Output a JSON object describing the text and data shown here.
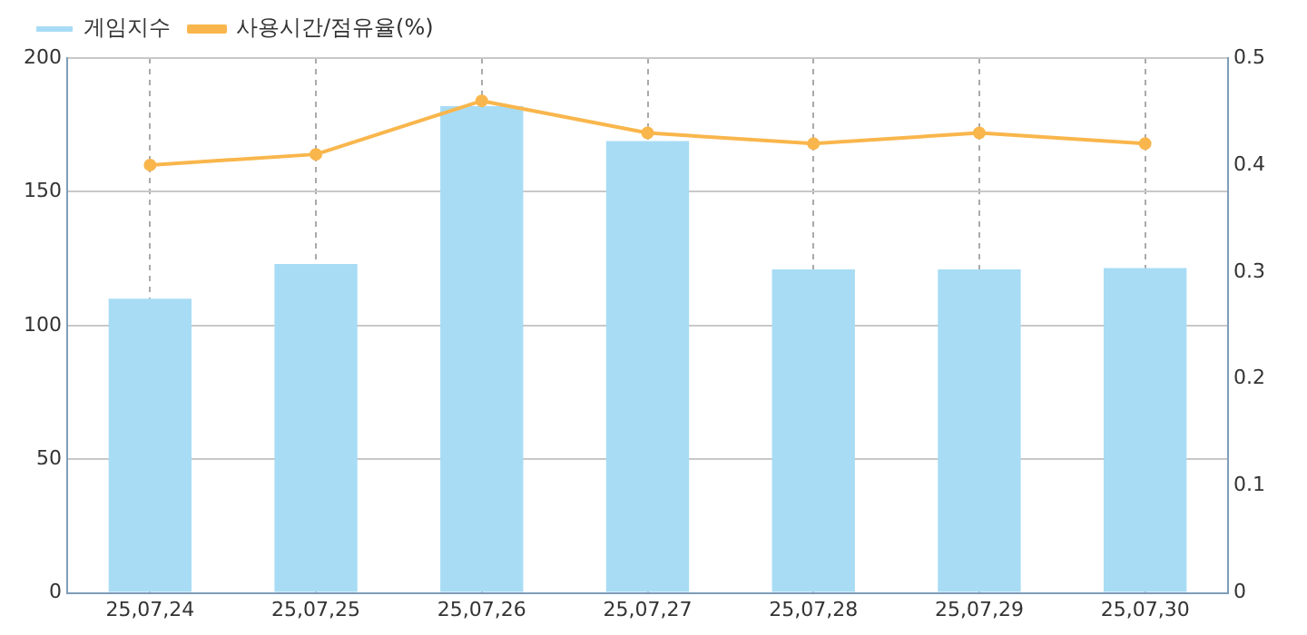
{
  "chart_data": {
    "type": "bar",
    "categories": [
      "25,07,24",
      "25,07,25",
      "25,07,26",
      "25,07,27",
      "25,07,28",
      "25,07,29",
      "25,07,30"
    ],
    "series": [
      {
        "name": "게임지수",
        "color": "#a8dcf5",
        "values": [
          110,
          123,
          182,
          169,
          121,
          121,
          121.5
        ]
      },
      {
        "name": "사용시간/점유율(%)",
        "type": "line",
        "axis": "y2",
        "color": "#f9b64c",
        "values": [
          0.4,
          0.41,
          0.46,
          0.43,
          0.42,
          0.43,
          0.42
        ]
      }
    ],
    "ylim": [
      0,
      200
    ],
    "yticks": [
      0,
      50,
      100,
      150,
      200
    ],
    "y2lim": [
      0,
      0.5
    ],
    "y2ticks": [
      0,
      0.1,
      0.2,
      0.3,
      0.4,
      0.5
    ],
    "grid": true,
    "legend": "top left",
    "marker": "circle"
  }
}
